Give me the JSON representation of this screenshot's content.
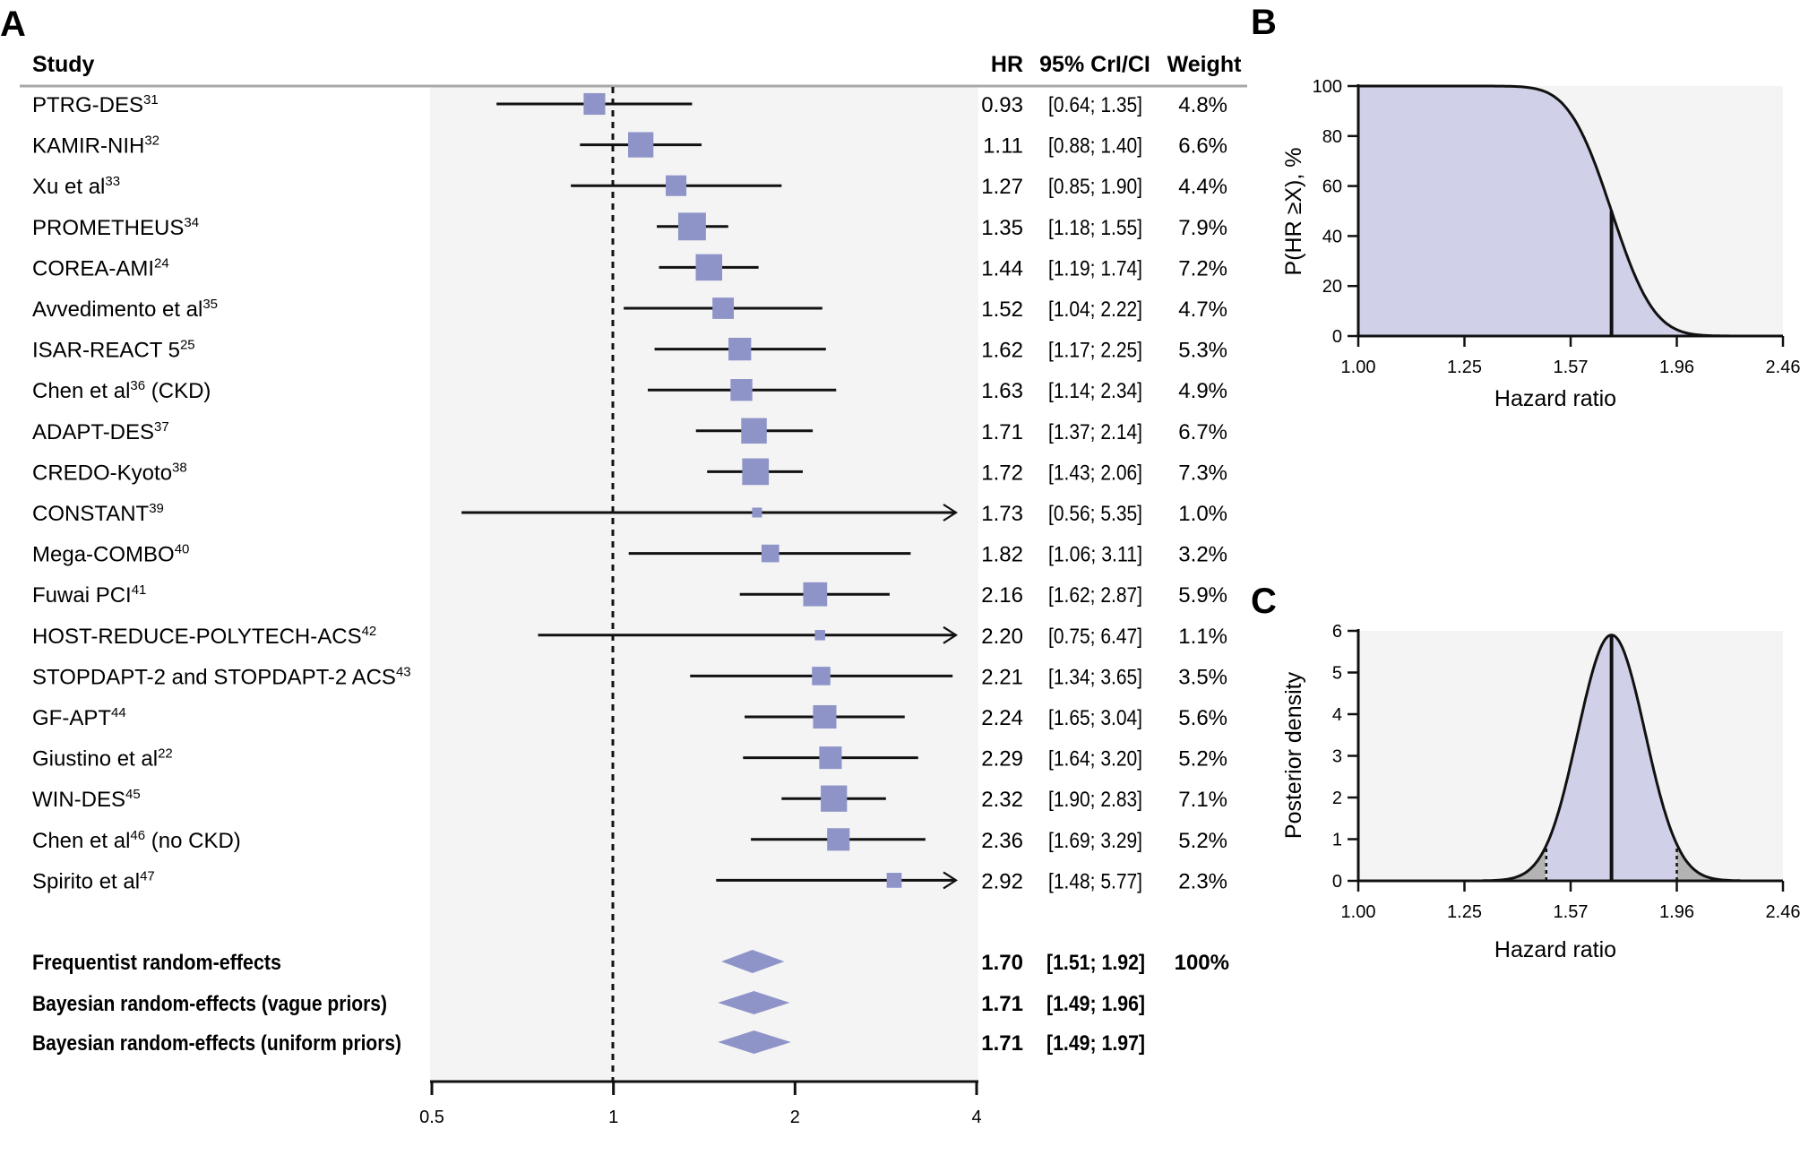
{
  "chart_data": [
    {
      "panel": "A",
      "type": "forest",
      "xscale": "log2",
      "xlim": [
        0.5,
        4
      ],
      "xticks": [
        "0.5",
        "1",
        "2",
        "4"
      ],
      "reference_line": 1,
      "columns": {
        "study": "Study",
        "hr": "HR",
        "ci": "95% CrI/CI",
        "weight": "Weight"
      },
      "studies": [
        {
          "name": "PTRG-DES",
          "ref": "31",
          "suffix": "",
          "hr": 0.93,
          "lo": 0.64,
          "hi": 1.35,
          "hr_text": "0.93",
          "ci_text": "[0.64; 1.35]",
          "weight": 4.8,
          "weight_text": "4.8%"
        },
        {
          "name": "KAMIR-NIH",
          "ref": "32",
          "suffix": "",
          "hr": 1.11,
          "lo": 0.88,
          "hi": 1.4,
          "hr_text": "1.11",
          "ci_text": "[0.88; 1.40]",
          "weight": 6.6,
          "weight_text": "6.6%"
        },
        {
          "name": "Xu et al",
          "ref": "33",
          "suffix": "",
          "hr": 1.27,
          "lo": 0.85,
          "hi": 1.9,
          "hr_text": "1.27",
          "ci_text": "[0.85; 1.90]",
          "weight": 4.4,
          "weight_text": "4.4%"
        },
        {
          "name": "PROMETHEUS",
          "ref": "34",
          "suffix": "",
          "hr": 1.35,
          "lo": 1.18,
          "hi": 1.55,
          "hr_text": "1.35",
          "ci_text": "[1.18; 1.55]",
          "weight": 7.9,
          "weight_text": "7.9%"
        },
        {
          "name": "COREA-AMI",
          "ref": "24",
          "suffix": "",
          "hr": 1.44,
          "lo": 1.19,
          "hi": 1.74,
          "hr_text": "1.44",
          "ci_text": "[1.19; 1.74]",
          "weight": 7.2,
          "weight_text": "7.2%"
        },
        {
          "name": "Avvedimento et al",
          "ref": "35",
          "suffix": "",
          "hr": 1.52,
          "lo": 1.04,
          "hi": 2.22,
          "hr_text": "1.52",
          "ci_text": "[1.04; 2.22]",
          "weight": 4.7,
          "weight_text": "4.7%"
        },
        {
          "name": "ISAR-REACT 5",
          "ref": "25",
          "suffix": "",
          "hr": 1.62,
          "lo": 1.17,
          "hi": 2.25,
          "hr_text": "1.62",
          "ci_text": "[1.17; 2.25]",
          "weight": 5.3,
          "weight_text": "5.3%"
        },
        {
          "name": "Chen et al",
          "ref": "36",
          "suffix": " (CKD)",
          "hr": 1.63,
          "lo": 1.14,
          "hi": 2.34,
          "hr_text": "1.63",
          "ci_text": "[1.14; 2.34]",
          "weight": 4.9,
          "weight_text": "4.9%"
        },
        {
          "name": "ADAPT-DES",
          "ref": "37",
          "suffix": "",
          "hr": 1.71,
          "lo": 1.37,
          "hi": 2.14,
          "hr_text": "1.71",
          "ci_text": "[1.37; 2.14]",
          "weight": 6.7,
          "weight_text": "6.7%"
        },
        {
          "name": "CREDO-Kyoto",
          "ref": "38",
          "suffix": "",
          "hr": 1.72,
          "lo": 1.43,
          "hi": 2.06,
          "hr_text": "1.72",
          "ci_text": "[1.43; 2.06]",
          "weight": 7.3,
          "weight_text": "7.3%"
        },
        {
          "name": "CONSTANT",
          "ref": "39",
          "suffix": "",
          "hr": 1.73,
          "lo": 0.56,
          "hi": 5.35,
          "hr_text": "1.73",
          "ci_text": "[0.56; 5.35]",
          "weight": 1.0,
          "weight_text": "1.0%"
        },
        {
          "name": "Mega-COMBO",
          "ref": "40",
          "suffix": "",
          "hr": 1.82,
          "lo": 1.06,
          "hi": 3.11,
          "hr_text": "1.82",
          "ci_text": "[1.06; 3.11]",
          "weight": 3.2,
          "weight_text": "3.2%"
        },
        {
          "name": "Fuwai PCI",
          "ref": "41",
          "suffix": "",
          "hr": 2.16,
          "lo": 1.62,
          "hi": 2.87,
          "hr_text": "2.16",
          "ci_text": "[1.62; 2.87]",
          "weight": 5.9,
          "weight_text": "5.9%"
        },
        {
          "name": "HOST-REDUCE-POLYTECH-ACS",
          "ref": "42",
          "suffix": "",
          "hr": 2.2,
          "lo": 0.75,
          "hi": 6.47,
          "hr_text": "2.20",
          "ci_text": "[0.75; 6.47]",
          "weight": 1.1,
          "weight_text": "1.1%"
        },
        {
          "name": "STOPDAPT-2 and STOPDAPT-2 ACS",
          "ref": "43",
          "suffix": "",
          "hr": 2.21,
          "lo": 1.34,
          "hi": 3.65,
          "hr_text": "2.21",
          "ci_text": "[1.34; 3.65]",
          "weight": 3.5,
          "weight_text": "3.5%"
        },
        {
          "name": "GF-APT",
          "ref": "44",
          "suffix": "",
          "hr": 2.24,
          "lo": 1.65,
          "hi": 3.04,
          "hr_text": "2.24",
          "ci_text": "[1.65; 3.04]",
          "weight": 5.6,
          "weight_text": "5.6%"
        },
        {
          "name": "Giustino et al",
          "ref": "22",
          "suffix": "",
          "hr": 2.29,
          "lo": 1.64,
          "hi": 3.2,
          "hr_text": "2.29",
          "ci_text": "[1.64; 3.20]",
          "weight": 5.2,
          "weight_text": "5.2%"
        },
        {
          "name": "WIN-DES",
          "ref": "45",
          "suffix": "",
          "hr": 2.32,
          "lo": 1.9,
          "hi": 2.83,
          "hr_text": "2.32",
          "ci_text": "[1.90; 2.83]",
          "weight": 7.1,
          "weight_text": "7.1%"
        },
        {
          "name": "Chen et al",
          "ref": "46",
          "suffix": " (no CKD)",
          "hr": 2.36,
          "lo": 1.69,
          "hi": 3.29,
          "hr_text": "2.36",
          "ci_text": "[1.69; 3.29]",
          "weight": 5.2,
          "weight_text": "5.2%"
        },
        {
          "name": "Spirito et al",
          "ref": "47",
          "suffix": "",
          "hr": 2.92,
          "lo": 1.48,
          "hi": 5.77,
          "hr_text": "2.92",
          "ci_text": "[1.48; 5.77]",
          "weight": 2.3,
          "weight_text": "2.3%"
        }
      ],
      "pooled": [
        {
          "name": "Frequentist random-effects",
          "hr": 1.7,
          "lo": 1.51,
          "hi": 1.92,
          "hr_text": "1.70",
          "ci_text": "[1.51; 1.92]",
          "weight_text": "100%"
        },
        {
          "name": "Bayesian random-effects (vague priors)",
          "hr": 1.71,
          "lo": 1.49,
          "hi": 1.96,
          "hr_text": "1.71",
          "ci_text": "[1.49; 1.96]",
          "weight_text": ""
        },
        {
          "name": "Bayesian random-effects (uniform priors)",
          "hr": 1.71,
          "lo": 1.49,
          "hi": 1.97,
          "hr_text": "1.71",
          "ci_text": "[1.49; 1.97]",
          "weight_text": ""
        }
      ]
    },
    {
      "panel": "B",
      "type": "area",
      "title": "",
      "xlabel": "Hazard ratio",
      "ylabel": "P(HR ≥X), %",
      "xticks": [
        "1.00",
        "1.25",
        "1.57",
        "1.96",
        "2.46"
      ],
      "xtick_values": [
        1.0,
        1.25,
        1.57,
        1.96,
        2.46
      ],
      "yticks": [
        "0",
        "20",
        "40",
        "60",
        "80",
        "100"
      ],
      "ylim": [
        0,
        100
      ],
      "posterior_median": 1.71,
      "posterior_ci": [
        1.49,
        1.96
      ],
      "marker_line": {
        "x": 1.71,
        "y": 47
      },
      "description": "Posterior probability that HR exceeds X; ~100% up to HR 1.35, ~47% at 1.71, ~0% beyond 2.2"
    },
    {
      "panel": "C",
      "type": "area",
      "title": "",
      "xlabel": "Hazard ratio",
      "ylabel": "Posterior density",
      "xticks": [
        "1.00",
        "1.25",
        "1.57",
        "1.96",
        "2.46"
      ],
      "xtick_values": [
        1.0,
        1.25,
        1.57,
        1.96,
        2.46
      ],
      "yticks": [
        "0",
        "1",
        "2",
        "3",
        "4",
        "5",
        "6"
      ],
      "ylim": [
        0,
        6
      ],
      "posterior_median": 1.71,
      "posterior_ci": [
        1.49,
        1.96
      ],
      "peak_density": 5.9,
      "description": "Posterior density of HR; central 95% credible region shaded blue, tails shaded grey, dotted lines at credible interval bounds"
    }
  ],
  "labels": {
    "panel_a": "A",
    "panel_b": "B",
    "panel_c": "C"
  },
  "colors": {
    "marker": "#8e94c8",
    "fill": "#d0d1e8",
    "tail": "#b3b3b3",
    "panel_bg": "#f4f4f4",
    "header_rule": "#a8a8a8"
  }
}
